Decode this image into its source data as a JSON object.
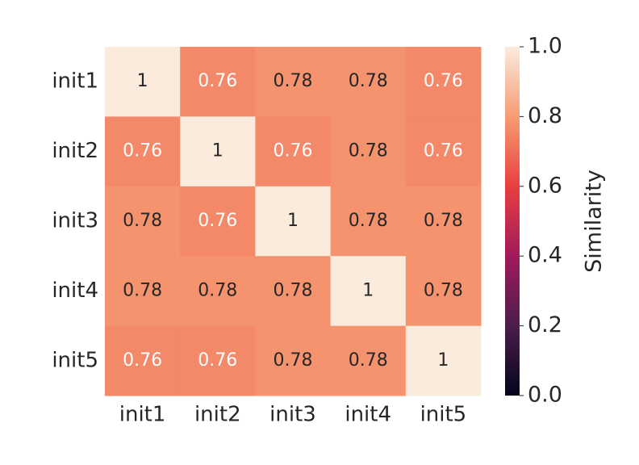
{
  "chart_data": {
    "type": "heatmap",
    "x_categories": [
      "init1",
      "init2",
      "init3",
      "init4",
      "init5"
    ],
    "y_categories": [
      "init1",
      "init2",
      "init3",
      "init4",
      "init5"
    ],
    "values": [
      [
        1,
        0.76,
        0.78,
        0.78,
        0.76
      ],
      [
        0.76,
        1,
        0.76,
        0.78,
        0.76
      ],
      [
        0.78,
        0.76,
        1,
        0.78,
        0.78
      ],
      [
        0.78,
        0.78,
        0.78,
        1,
        0.78
      ],
      [
        0.76,
        0.76,
        0.78,
        0.78,
        1
      ]
    ],
    "colorscale": [
      "#03051A",
      "#4C1D4B",
      "#A11A5B",
      "#E83F3F",
      "#F69C73",
      "#FAEBDD"
    ],
    "clim": [
      0,
      1
    ],
    "cticks": [
      {
        "value": 0,
        "label": "0.0"
      },
      0.2,
      0.4,
      0.6,
      0.8,
      {
        "value": 1,
        "label": "1.0"
      }
    ],
    "colorbar_label": "Similarity"
  }
}
